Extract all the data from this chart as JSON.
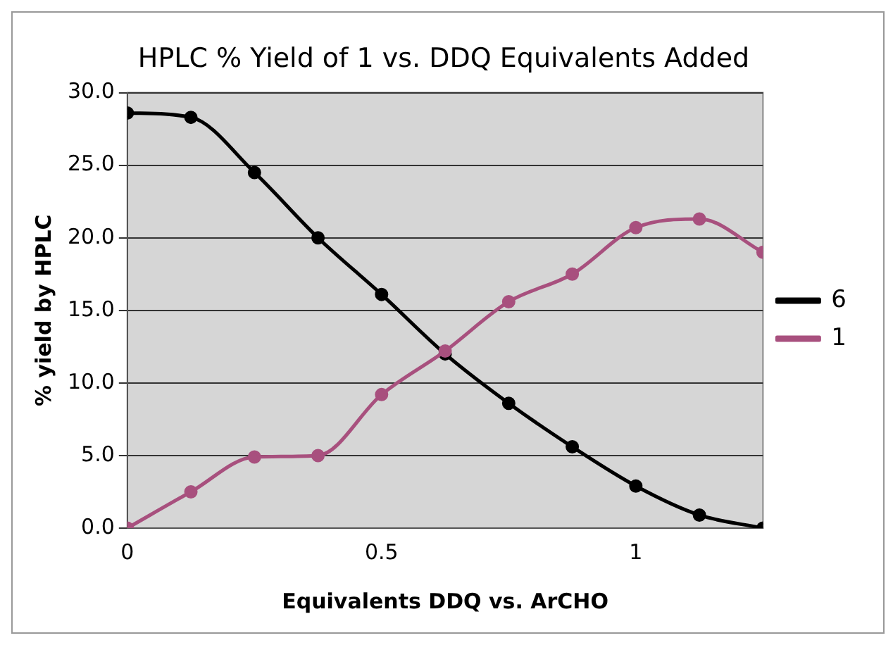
{
  "chart_data": {
    "type": "line",
    "title": "HPLC % Yield of 1 vs. DDQ Equivalents Added",
    "xlabel": "Equivalents DDQ vs. ArCHO",
    "ylabel": "% yield by HPLC",
    "x": [
      0,
      0.125,
      0.25,
      0.375,
      0.5,
      0.625,
      0.75,
      0.875,
      1,
      1.125,
      1.25
    ],
    "series": [
      {
        "name": "6",
        "color": "#000000",
        "values": [
          28.6,
          28.3,
          24.5,
          20.0,
          16.1,
          12.0,
          8.6,
          5.6,
          2.9,
          0.9,
          0
        ]
      },
      {
        "name": "1",
        "color": "#a8507e",
        "values": [
          0,
          2.5,
          4.9,
          5.0,
          9.2,
          12.2,
          15.6,
          17.5,
          20.7,
          21.3,
          19.0
        ]
      }
    ],
    "xlim": [
      0,
      1.25
    ],
    "xticks": [
      0,
      0.5,
      1
    ],
    "ylim": [
      0,
      30
    ],
    "yticks": [
      {
        "value": 0,
        "label": "0.0"
      },
      {
        "value": 5,
        "label": "5.0"
      },
      {
        "value": 10,
        "label": "10.0"
      },
      {
        "value": 15,
        "label": "15.0"
      },
      {
        "value": 20,
        "label": "20.0"
      },
      {
        "value": 25,
        "label": "25.0"
      },
      {
        "value": 30,
        "label": "30.0"
      }
    ],
    "grid": "y",
    "legend": "right",
    "marker": "circle",
    "line_style": "solid"
  }
}
